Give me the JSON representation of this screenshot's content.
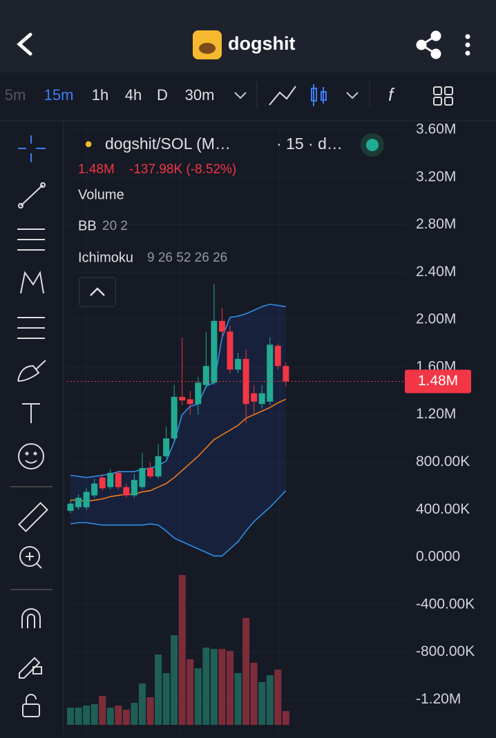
{
  "header": {
    "title": "dogshit"
  },
  "toolbar": {
    "timeframes": [
      "5m",
      "15m",
      "1h",
      "4h",
      "D",
      "30m"
    ],
    "active": 1
  },
  "chart_data": {
    "type": "candlestick",
    "legend": {
      "pair": "dogshit/SOL (M…",
      "interval": "· 15 · d…",
      "price": "1.48M",
      "change": "-137.98K (-8.52%)",
      "volume": "Volume",
      "bb": "BB",
      "bb_params": "20 2",
      "ichimoku": "Ichimoku",
      "ichimoku_params": "9 26 52 26 26"
    },
    "ylim": [
      -1.3,
      3.6
    ],
    "yticks": [
      {
        "value": 3.6,
        "label": "3.60M"
      },
      {
        "value": 3.2,
        "label": "3.20M"
      },
      {
        "value": 2.8,
        "label": "2.80M"
      },
      {
        "value": 2.4,
        "label": "2.40M"
      },
      {
        "value": 2.0,
        "label": "2.00M"
      },
      {
        "value": 1.6,
        "label": "1.60M"
      },
      {
        "value": 1.2,
        "label": "1.20M"
      },
      {
        "value": 0.8,
        "label": "800.00K"
      },
      {
        "value": 0.4,
        "label": "400.00K"
      },
      {
        "value": 0,
        "label": "0.0000"
      },
      {
        "value": -0.4,
        "label": "-400.00K"
      },
      {
        "value": -0.8,
        "label": "-800.00K"
      },
      {
        "value": -1.2,
        "label": "-1.20M"
      }
    ],
    "open": [
      0.39,
      0.42,
      0.42,
      0.52,
      0.67,
      0.59,
      0.71,
      0.59,
      0.52,
      0.59,
      0.75,
      0.68,
      0.85,
      1.0,
      1.35,
      1.33,
      1.29,
      1.45,
      1.47,
      1.99,
      1.9,
      1.58,
      1.67,
      1.38,
      1.29,
      1.31,
      1.78,
      1.61
    ],
    "close": [
      0.45,
      0.5,
      0.55,
      0.62,
      0.58,
      0.71,
      0.59,
      0.52,
      0.65,
      0.75,
      0.68,
      0.85,
      1.0,
      1.35,
      1.32,
      1.29,
      1.47,
      1.61,
      1.99,
      1.9,
      1.58,
      1.67,
      1.29,
      1.31,
      1.38,
      1.79,
      1.61,
      1.48
    ],
    "high": [
      0.48,
      0.53,
      0.58,
      0.66,
      0.7,
      0.74,
      0.73,
      0.62,
      0.7,
      0.88,
      0.8,
      0.95,
      1.1,
      1.45,
      1.85,
      1.4,
      1.52,
      1.9,
      2.3,
      2.1,
      1.95,
      1.72,
      1.75,
      1.45,
      1.45,
      1.85,
      1.8,
      1.64
    ],
    "low": [
      0.37,
      0.4,
      0.4,
      0.5,
      0.56,
      0.57,
      0.57,
      0.5,
      0.5,
      0.57,
      0.66,
      0.66,
      0.83,
      0.98,
      1.28,
      1.2,
      1.2,
      1.42,
      1.45,
      1.85,
      1.55,
      1.55,
      1.13,
      1.2,
      1.25,
      1.28,
      1.58,
      1.44
    ],
    "volume": [
      25,
      25,
      28,
      30,
      42,
      25,
      28,
      22,
      32,
      60,
      40,
      102,
      75,
      130,
      217,
      95,
      82,
      112,
      110,
      110,
      107,
      75,
      155,
      90,
      62,
      72,
      80,
      20
    ],
    "series": [
      {
        "name": "BB upper",
        "color": "#2f8fe8",
        "values": [
          0.69,
          0.68,
          0.67,
          0.68,
          0.69,
          0.7,
          0.72,
          0.72,
          0.72,
          0.74,
          0.75,
          0.77,
          0.81,
          0.97,
          1.2,
          1.27,
          1.29,
          1.44,
          1.47,
          1.85,
          2.02,
          2.03,
          2.05,
          2.08,
          2.11,
          2.13,
          2.12,
          2.11
        ]
      },
      {
        "name": "BB basis",
        "color": "#f07c21",
        "values": [
          0.48,
          0.48,
          0.47,
          0.48,
          0.49,
          0.51,
          0.52,
          0.53,
          0.53,
          0.55,
          0.56,
          0.59,
          0.62,
          0.67,
          0.73,
          0.79,
          0.85,
          0.92,
          0.99,
          1.03,
          1.07,
          1.11,
          1.17,
          1.2,
          1.23,
          1.26,
          1.3,
          1.33
        ]
      },
      {
        "name": "BB lower",
        "color": "#2f8fe8",
        "values": [
          0.28,
          0.29,
          0.29,
          0.28,
          0.27,
          0.27,
          0.27,
          0.27,
          0.27,
          0.27,
          0.28,
          0.27,
          0.22,
          0.16,
          0.13,
          0.1,
          0.07,
          0.04,
          0.01,
          0.01,
          0.07,
          0.13,
          0.22,
          0.3,
          0.36,
          0.42,
          0.49,
          0.56
        ]
      }
    ],
    "up_color": "#22ab94",
    "down_color": "#f23645",
    "grid": true
  }
}
